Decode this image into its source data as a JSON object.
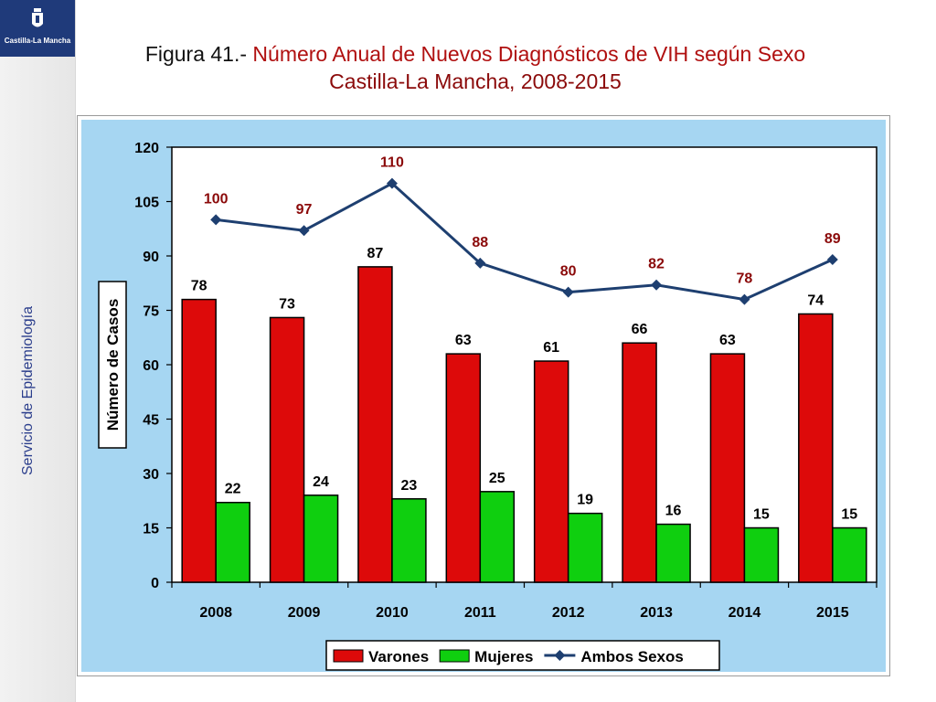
{
  "header": {
    "title_prefix": "Figura 41.- ",
    "title_main": "Número Anual de Nuevos Diagnósticos de VIH según Sexo",
    "title_line2": "Castilla-La Mancha, 2008-2015"
  },
  "sidebar": {
    "logo_text": "Castilla-La Mancha",
    "vertical_label": "Servicio de Epidemiología"
  },
  "chart_data": {
    "type": "bar",
    "categories": [
      "2008",
      "2009",
      "2010",
      "2011",
      "2012",
      "2013",
      "2014",
      "2015"
    ],
    "series": [
      {
        "name": "Varones",
        "type": "bar",
        "color": "#dd0a0a",
        "values": [
          78,
          73,
          87,
          63,
          61,
          66,
          63,
          74
        ]
      },
      {
        "name": "Mujeres",
        "type": "bar",
        "color": "#0fcf0f",
        "values": [
          22,
          24,
          23,
          25,
          19,
          16,
          15,
          15
        ]
      },
      {
        "name": "Ambos Sexos",
        "type": "line",
        "color": "#1e3f70",
        "values": [
          100,
          97,
          110,
          88,
          80,
          82,
          78,
          89
        ]
      }
    ],
    "ylabel": "Número de Casos",
    "xlabel": "",
    "ylim": [
      0,
      120
    ],
    "yticks": [
      0,
      15,
      30,
      45,
      60,
      75,
      90,
      105,
      120
    ],
    "grid": false,
    "legend_position": "bottom",
    "line_label_color": "#8b0a0a",
    "background_color": "#a6d6f2"
  }
}
